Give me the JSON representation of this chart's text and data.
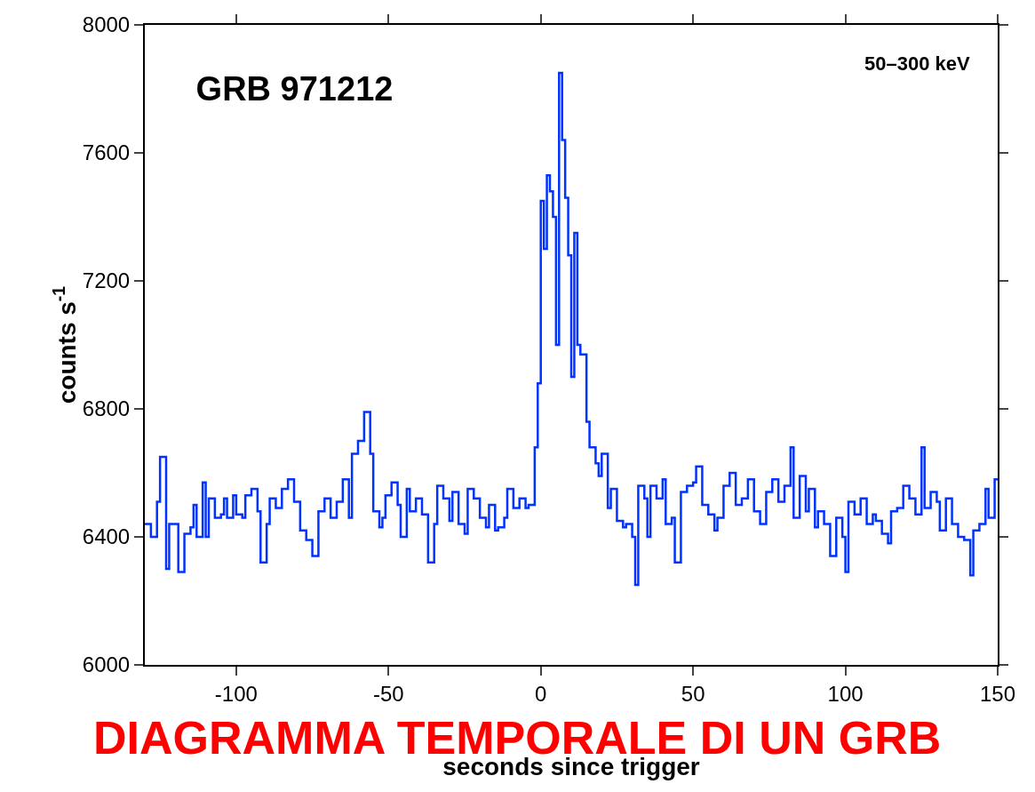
{
  "chart_data": {
    "type": "step",
    "title": "GRB 971212",
    "xlabel": "seconds since trigger",
    "ylabel": "counts s$^{-1}$",
    "annotations": [
      "50–300 keV",
      "DIAGRAMMA TEMPORALE DI UN GRB"
    ],
    "x": [
      -130,
      -128,
      -126,
      -125,
      -123,
      -122,
      -120,
      -119,
      -117,
      -115,
      -114,
      -113,
      -111,
      -110,
      -109,
      -107,
      -105,
      -104,
      -103,
      -101,
      -100,
      -98,
      -97,
      -95,
      -93,
      -92,
      -90,
      -89,
      -87,
      -85,
      -83,
      -81,
      -79,
      -77,
      -75,
      -73,
      -71,
      -69,
      -67,
      -65,
      -63,
      -62,
      -60,
      -58,
      -56,
      -55,
      -53,
      -52,
      -51,
      -49,
      -47,
      -46,
      -44,
      -43,
      -41,
      -39,
      -37,
      -35,
      -34,
      -32,
      -30,
      -29,
      -27,
      -25,
      -24,
      -22,
      -20,
      -18,
      -17,
      -15,
      -14,
      -12,
      -11,
      -9,
      -7,
      -5,
      -4,
      -2,
      -1,
      0,
      1,
      2,
      3,
      4,
      5,
      6,
      7,
      8,
      9,
      10,
      11,
      12,
      13,
      15,
      16,
      18,
      19,
      20,
      22,
      23,
      25,
      27,
      28,
      30,
      31,
      32,
      34,
      35,
      36,
      38,
      40,
      41,
      43,
      44,
      46,
      48,
      50,
      51,
      53,
      55,
      57,
      58,
      60,
      62,
      64,
      66,
      68,
      70,
      72,
      74,
      76,
      78,
      80,
      82,
      83,
      85,
      87,
      88,
      90,
      91,
      93,
      95,
      97,
      99,
      100,
      101,
      103,
      105,
      107,
      109,
      110,
      112,
      114,
      115,
      117,
      119,
      121,
      123,
      125,
      126,
      128,
      130,
      131,
      133,
      135,
      137,
      139,
      141,
      142,
      144,
      146,
      147,
      149,
      150
    ],
    "series": [
      {
        "color": "#0033ff",
        "values": [
          6440,
          6400,
          6510,
          6650,
          6300,
          6440,
          6440,
          6290,
          6410,
          6430,
          6500,
          6400,
          6570,
          6400,
          6520,
          6460,
          6470,
          6520,
          6460,
          6530,
          6470,
          6460,
          6530,
          6550,
          6480,
          6320,
          6440,
          6520,
          6490,
          6550,
          6580,
          6510,
          6420,
          6390,
          6340,
          6480,
          6520,
          6460,
          6510,
          6580,
          6460,
          6660,
          6700,
          6790,
          6660,
          6480,
          6430,
          6460,
          6530,
          6570,
          6500,
          6400,
          6550,
          6480,
          6520,
          6470,
          6320,
          6440,
          6560,
          6520,
          6450,
          6540,
          6440,
          6410,
          6550,
          6520,
          6460,
          6430,
          6500,
          6420,
          6430,
          6460,
          6550,
          6490,
          6520,
          6490,
          6500,
          6680,
          6880,
          7450,
          7300,
          7530,
          7480,
          7400,
          7000,
          7850,
          7640,
          7460,
          7280,
          6900,
          7350,
          7000,
          6970,
          6760,
          6680,
          6630,
          6590,
          6660,
          6490,
          6550,
          6450,
          6430,
          6440,
          6400,
          6250,
          6560,
          6520,
          6400,
          6560,
          6520,
          6580,
          6440,
          6460,
          6320,
          6540,
          6560,
          6570,
          6620,
          6500,
          6470,
          6420,
          6460,
          6560,
          6600,
          6500,
          6520,
          6580,
          6480,
          6440,
          6540,
          6580,
          6510,
          6560,
          6680,
          6460,
          6590,
          6480,
          6550,
          6430,
          6480,
          6440,
          6340,
          6460,
          6400,
          6290,
          6510,
          6470,
          6520,
          6440,
          6470,
          6450,
          6410,
          6380,
          6480,
          6490,
          6560,
          6520,
          6470,
          6680,
          6490,
          6540,
          6510,
          6420,
          6520,
          6440,
          6400,
          6390,
          6280,
          6420,
          6440,
          6550,
          6460,
          6580,
          6580
        ]
      }
    ],
    "xlim": [
      -130,
      150
    ],
    "xticks": [
      -100,
      -50,
      0,
      50,
      100,
      150
    ],
    "ylim": [
      6000,
      8000
    ],
    "yticks": [
      6000,
      6400,
      6800,
      7200,
      7600,
      8000
    ],
    "grid": false
  }
}
